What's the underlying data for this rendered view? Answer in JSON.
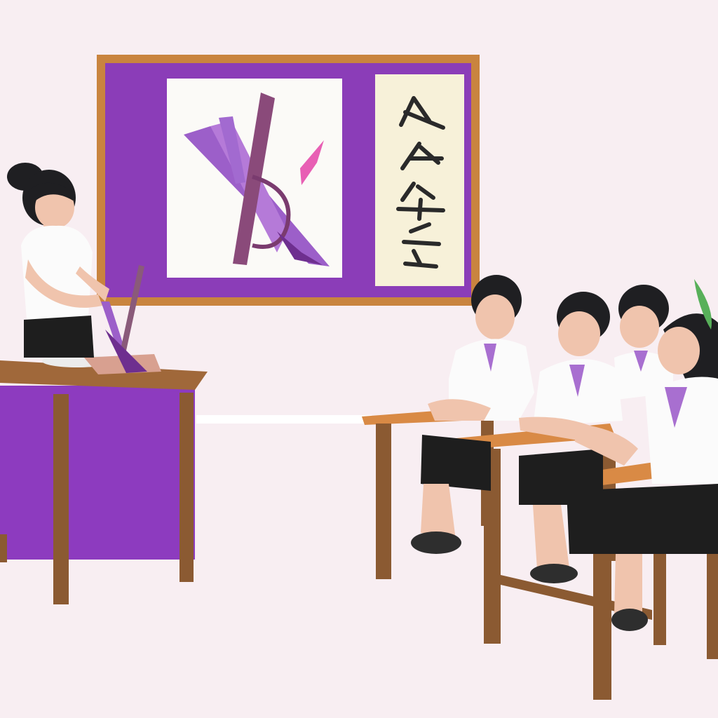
{
  "scene": {
    "colors": {
      "wall": "#f8eef2",
      "board_frame": "#c9843f",
      "board_purple": "#8b3db8",
      "panel_white": "#fbfaf7",
      "panel_cream": "#f7f1d9",
      "wood": "#8b5a32",
      "desk_top": "#d98a45",
      "podium_purple": "#8d3bbf",
      "shirt": "#fbfbfb",
      "skirt": "#1e1e1e",
      "hair": "#1f1f22",
      "skin": "#f0c4ad",
      "accent_pink": "#e85fb4",
      "stroke_purple": "#a86fd0",
      "ink": "#2a2a2a"
    },
    "icons": [
      "calligraphy-brush-icon",
      "ink-character-icon"
    ]
  }
}
